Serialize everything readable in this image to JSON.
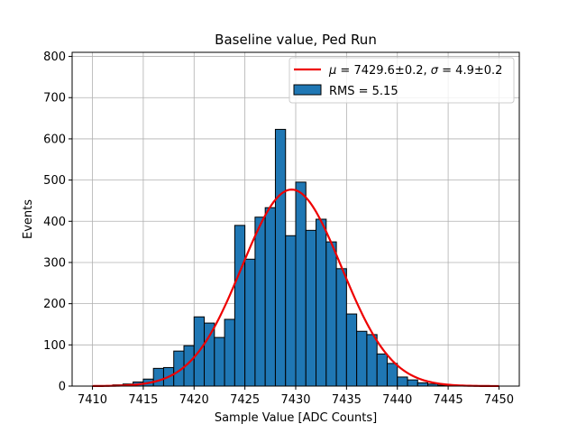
{
  "chart_data": {
    "type": "bar",
    "title": "Baseline value, Ped Run",
    "xlabel": "Sample Value [ADC Counts]",
    "ylabel": "Events",
    "xlim": [
      7408,
      7452
    ],
    "ylim": [
      0,
      810
    ],
    "xticks": [
      7410,
      7415,
      7420,
      7425,
      7430,
      7435,
      7440,
      7445,
      7450
    ],
    "yticks": [
      0,
      100,
      200,
      300,
      400,
      500,
      600,
      700,
      800
    ],
    "grid": true,
    "bin_width": 1.0,
    "histogram": {
      "label": "RMS = 5.15",
      "color": "#1f77b4",
      "edge_color": "#000000",
      "bin_starts": [
        7412,
        7413,
        7414,
        7415,
        7416,
        7417,
        7418,
        7419,
        7420,
        7421,
        7422,
        7423,
        7424,
        7425,
        7426,
        7427,
        7428,
        7429,
        7430,
        7431,
        7432,
        7433,
        7434,
        7435,
        7436,
        7437,
        7438,
        7439,
        7440,
        7441,
        7442,
        7443,
        7444
      ],
      "values": [
        3,
        5,
        10,
        17,
        43,
        45,
        85,
        98,
        168,
        153,
        118,
        162,
        390,
        308,
        410,
        433,
        623,
        365,
        495,
        378,
        405,
        350,
        285,
        175,
        133,
        125,
        78,
        55,
        22,
        15,
        8,
        5,
        2
      ]
    },
    "fit": {
      "label_prefix": "μ",
      "label_text": " = 7429.6±0.2, ",
      "label_sigma": "σ",
      "label_text2": " = 4.9±0.2",
      "color": "#ee0000",
      "mu": 7429.6,
      "sigma": 4.9,
      "amplitude": 477,
      "x_range": [
        7410,
        7450
      ]
    },
    "legend_position": "top-right"
  }
}
